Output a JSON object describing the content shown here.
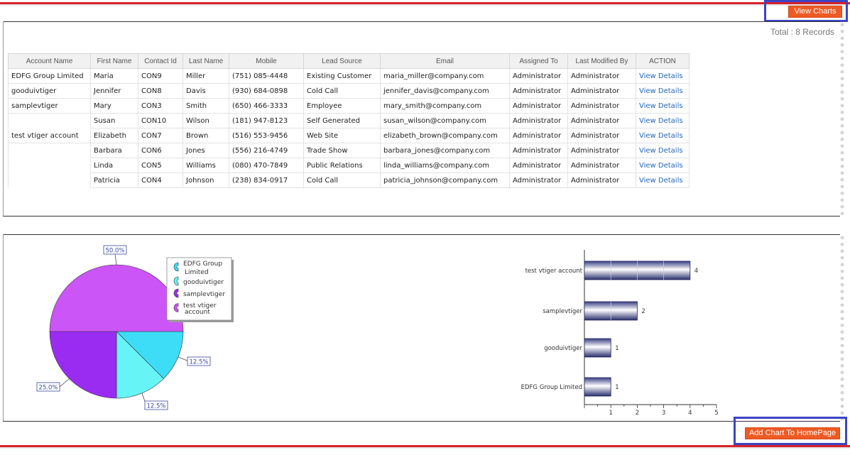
{
  "header": {
    "view_charts_label": "View Charts",
    "total_label": "Total : 8 Records"
  },
  "table": {
    "columns": [
      "Account Name",
      "First Name",
      "Contact Id",
      "Last Name",
      "Mobile",
      "Lead Source",
      "Email",
      "Assigned To",
      "Last Modified By",
      "ACTION"
    ],
    "rows": [
      {
        "account": "EDFG Group Limited",
        "first": "Maria",
        "id": "CON9",
        "last": "Miller",
        "mobile": "(751) 085-4448",
        "source": "Existing Customer",
        "email": "maria_miller@company.com",
        "assigned": "Administrator",
        "modified": "Administrator",
        "action": "View Details"
      },
      {
        "account": "gooduivtiger",
        "first": "Jennifer",
        "id": "CON8",
        "last": "Davis",
        "mobile": "(930) 684-0898",
        "source": "Cold Call",
        "email": "jennifer_davis@company.com",
        "assigned": "Administrator",
        "modified": "Administrator",
        "action": "View Details"
      },
      {
        "account": "samplevtiger",
        "first": "Mary",
        "id": "CON3",
        "last": "Smith",
        "mobile": "(650) 466-3333",
        "source": "Employee",
        "email": "mary_smith@company.com",
        "assigned": "Administrator",
        "modified": "Administrator",
        "action": "View Details"
      },
      {
        "account": "",
        "first": "Susan",
        "id": "CON10",
        "last": "Wilson",
        "mobile": "(181) 947-8123",
        "source": "Self Generated",
        "email": "susan_wilson@company.com",
        "assigned": "Administrator",
        "modified": "Administrator",
        "action": "View Details"
      },
      {
        "account": "test vtiger account",
        "first": "Elizabeth",
        "id": "CON7",
        "last": "Brown",
        "mobile": "(516) 553-9456",
        "source": "Web Site",
        "email": "elizabeth_brown@company.com",
        "assigned": "Administrator",
        "modified": "Administrator",
        "action": "View Details"
      },
      {
        "account": "",
        "first": "Barbara",
        "id": "CON6",
        "last": "Jones",
        "mobile": "(556) 216-4749",
        "source": "Trade Show",
        "email": "barbara_jones@company.com",
        "assigned": "Administrator",
        "modified": "Administrator",
        "action": "View Details"
      },
      {
        "account": "",
        "first": "Linda",
        "id": "CON5",
        "last": "Williams",
        "mobile": "(080) 470-7849",
        "source": "Public Relations",
        "email": "linda_williams@company.com",
        "assigned": "Administrator",
        "modified": "Administrator",
        "action": "View Details"
      },
      {
        "account": "",
        "first": "Patricia",
        "id": "CON4",
        "last": "Johnson",
        "mobile": "(238) 834-0917",
        "source": "Cold Call",
        "email": "patricia_johnson@company.com",
        "assigned": "Administrator",
        "modified": "Administrator",
        "action": "View Details"
      }
    ]
  },
  "chart_data": [
    {
      "type": "pie",
      "slices": [
        {
          "name": "EDFG Group Limited",
          "value": 12.5,
          "label": "12.5%",
          "color": "#3ddcf7"
        },
        {
          "name": "gooduivtiger",
          "value": 12.5,
          "label": "12.5%",
          "color": "#66f4f7"
        },
        {
          "name": "samplevtiger",
          "value": 25.0,
          "label": "25.0%",
          "color": "#9a2cf2"
        },
        {
          "name": "test vtiger account",
          "value": 50.0,
          "label": "50.0%",
          "color": "#cc55f7"
        }
      ],
      "legend": [
        "EDFG Group Limited",
        "gooduivtiger",
        "samplevtiger",
        "test vtiger account"
      ]
    },
    {
      "type": "bar",
      "orientation": "horizontal",
      "categories": [
        "test vtiger account",
        "samplevtiger",
        "gooduivtiger",
        "EDFG Group Limited"
      ],
      "values": [
        4,
        2,
        1,
        1
      ],
      "xlim": [
        0,
        5
      ],
      "xticks": [
        "1",
        "2",
        "3",
        "4",
        "5"
      ],
      "bar_color": "#2a2f6e"
    }
  ],
  "footer": {
    "add_chart_label": "Add Chart To HomePage"
  },
  "colors": {
    "accent": "#ee5a24",
    "focus": "#3d44c4",
    "link": "#2266bb",
    "rule": "#d8232a"
  }
}
